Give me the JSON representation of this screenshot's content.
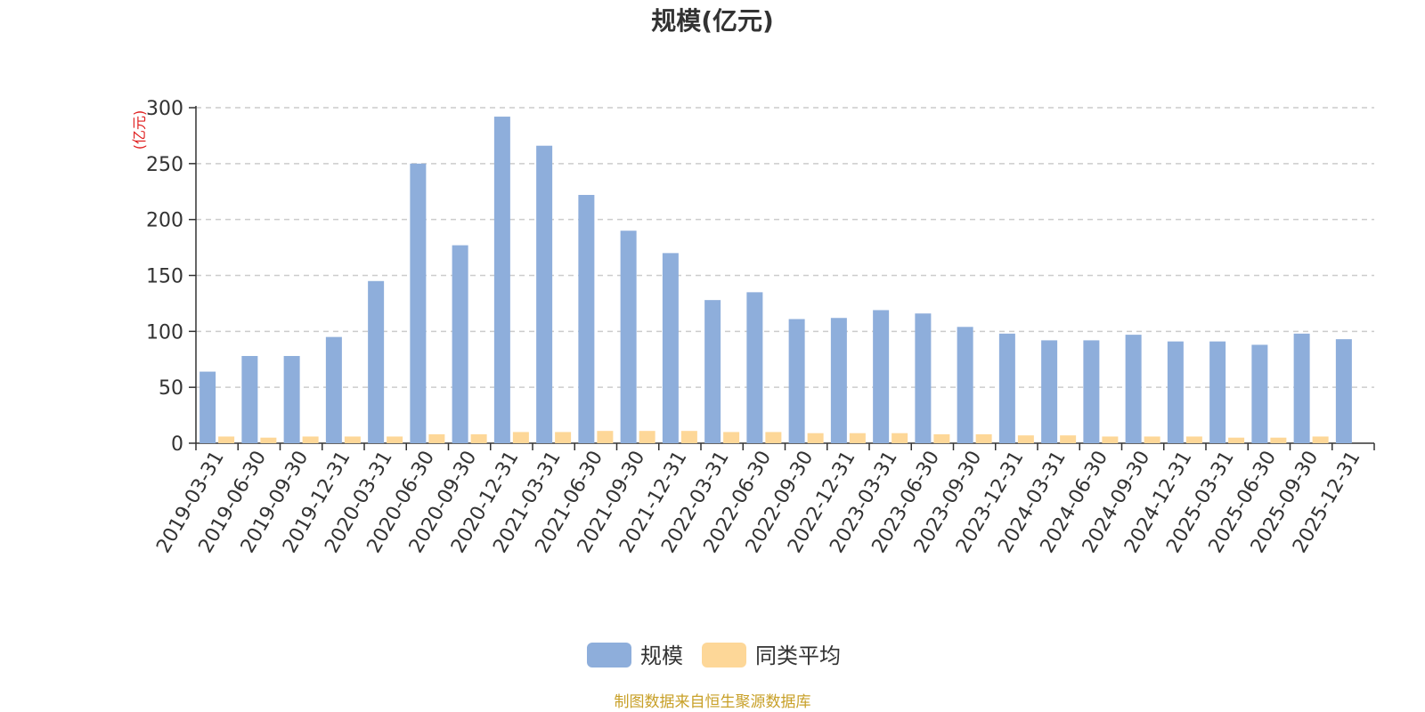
{
  "chart_data": {
    "type": "bar",
    "title": "规模(亿元)",
    "ylabel": "(亿元)",
    "xlabel": "",
    "ylim": [
      0,
      300
    ],
    "yticks": [
      0,
      50,
      100,
      150,
      200,
      250,
      300
    ],
    "grid": true,
    "legend_position": "bottom",
    "categories": [
      "2019-03-31",
      "2019-06-30",
      "2019-09-30",
      "2019-12-31",
      "2020-03-31",
      "2020-06-30",
      "2020-09-30",
      "2020-12-31",
      "2021-03-31",
      "2021-06-30",
      "2021-09-30",
      "2021-12-31",
      "2022-03-31",
      "2022-06-30",
      "2022-09-30",
      "2022-12-31",
      "2023-03-31",
      "2023-06-30",
      "2023-09-30",
      "2023-12-31",
      "2024-03-31",
      "2024-06-30",
      "2024-09-30",
      "2024-12-31",
      "2025-03-31",
      "2025-06-30",
      "2025-09-30",
      "2025-12-31"
    ],
    "series": [
      {
        "name": "规模",
        "color": "#8eaedb",
        "values": [
          64,
          78,
          78,
          95,
          145,
          250,
          177,
          292,
          266,
          222,
          190,
          170,
          128,
          135,
          111,
          112,
          119,
          116,
          104,
          98,
          92,
          92,
          97,
          91,
          91,
          88,
          98,
          93
        ]
      },
      {
        "name": "同类平均",
        "color": "#fdd798",
        "values": [
          6,
          5,
          6,
          6,
          6,
          8,
          8,
          10,
          10,
          11,
          11,
          11,
          10,
          10,
          9,
          9,
          9,
          8,
          8,
          7,
          7,
          6,
          6,
          6,
          5,
          5,
          6,
          null
        ]
      }
    ]
  },
  "source": "制图数据来自恒生聚源数据库"
}
